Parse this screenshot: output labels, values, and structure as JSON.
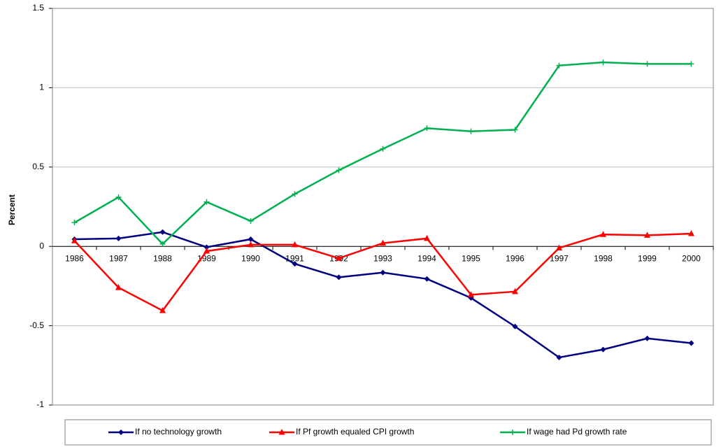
{
  "chart_data": {
    "type": "line",
    "y_label": "Percent",
    "categories": [
      "1986",
      "1987",
      "1988",
      "1989",
      "1990",
      "1991",
      "1992",
      "1993",
      "1994",
      "1995",
      "1996",
      "1997",
      "1998",
      "1999",
      "2000"
    ],
    "series": [
      {
        "name": "If no technology growth",
        "color": "#000080",
        "marker": "diamond",
        "values": [
          0.045,
          0.05,
          0.09,
          -0.005,
          0.045,
          -0.11,
          -0.195,
          -0.165,
          -0.205,
          -0.325,
          -0.505,
          -0.7,
          -0.65,
          -0.58,
          -0.61
        ]
      },
      {
        "name": "If Pf growth equaled CPI growth",
        "color": "#ff0000",
        "marker": "triangle",
        "values": [
          0.035,
          -0.26,
          -0.405,
          -0.03,
          0.01,
          0.01,
          -0.075,
          0.02,
          0.05,
          -0.305,
          -0.285,
          -0.01,
          0.075,
          0.07,
          0.08
        ]
      },
      {
        "name": "If wage had Pd growth rate",
        "color": "#00b050",
        "marker": "plus",
        "values": [
          0.15,
          0.31,
          0.015,
          0.28,
          0.16,
          0.33,
          0.48,
          0.615,
          0.745,
          0.725,
          0.735,
          1.14,
          1.16,
          1.15,
          1.15
        ]
      }
    ],
    "ylim": [
      -1,
      1.5
    ],
    "yticks": [
      -1,
      -0.5,
      0,
      0.5,
      1,
      1.5
    ],
    "grid": true,
    "legend": "bottom"
  }
}
